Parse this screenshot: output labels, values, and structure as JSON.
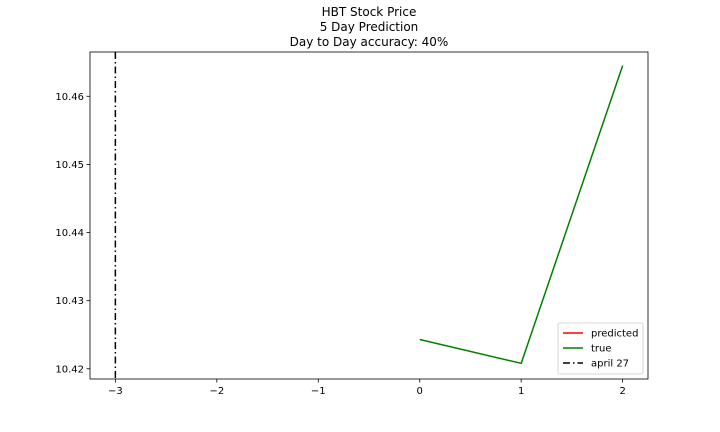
{
  "chart_data": {
    "type": "line",
    "title_lines": [
      "HBT Stock Price",
      "5 Day Prediction",
      "Day to Day accuracy: 40%"
    ],
    "xlabel": "",
    "ylabel": "",
    "xlim": [
      -3.25,
      2.25
    ],
    "ylim": [
      10.4185,
      10.4665
    ],
    "x_ticks": [
      -3,
      -2,
      -1,
      0,
      1,
      2
    ],
    "x_tick_labels": [
      "−3",
      "−2",
      "−1",
      "0",
      "1",
      "2"
    ],
    "y_ticks": [
      10.42,
      10.43,
      10.44,
      10.45,
      10.46
    ],
    "y_tick_labels": [
      "10.42",
      "10.43",
      "10.44",
      "10.45",
      "10.46"
    ],
    "grid": false,
    "series": [
      {
        "name": "predicted",
        "color": "#ff0000",
        "style": "solid",
        "x": [],
        "y": []
      },
      {
        "name": "true",
        "color": "#008000",
        "style": "solid",
        "x": [
          0,
          1,
          2
        ],
        "y": [
          10.4243,
          10.4208,
          10.4645
        ]
      }
    ],
    "vlines": [
      {
        "name": "april 27",
        "x": -3,
        "color": "#000000",
        "style": "dashdot"
      }
    ],
    "legend": {
      "position": "lower-right",
      "entries": [
        {
          "label": "predicted",
          "color": "#ff0000",
          "style": "solid"
        },
        {
          "label": "true",
          "color": "#008000",
          "style": "solid"
        },
        {
          "label": "april 27",
          "color": "#000000",
          "style": "dashdot"
        }
      ]
    }
  }
}
